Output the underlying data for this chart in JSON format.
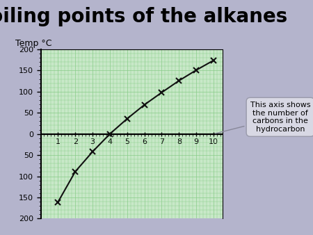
{
  "title": "Boiling points of the alkanes",
  "ylabel": "Temp °C",
  "x_data": [
    1,
    2,
    3,
    4,
    5,
    6,
    7,
    8,
    9,
    10
  ],
  "y_data": [
    -161,
    -89,
    -42,
    0,
    36,
    69,
    98,
    126,
    151,
    174
  ],
  "xlim": [
    0,
    10.5
  ],
  "ylim": [
    -200,
    200
  ],
  "yticks": [
    -200,
    -150,
    -100,
    -50,
    0,
    50,
    100,
    150,
    200
  ],
  "xticks": [
    1,
    2,
    3,
    4,
    5,
    6,
    7,
    8,
    9,
    10
  ],
  "background_color": "#b4b4cc",
  "plot_bg_color": "#c8e8c8",
  "grid_color": "#88cc88",
  "line_color": "#111111",
  "marker": "x",
  "marker_size": 6,
  "marker_lw": 1.5,
  "line_width": 1.5,
  "annotation_text": "This axis shows\nthe number of\ncarbons in the\nhydrocarbon",
  "title_fontsize": 20,
  "ylabel_fontsize": 9,
  "tick_fontsize": 8,
  "annot_fontsize": 8,
  "annot_bg": "#d8d8e4",
  "annot_edge": "#999aaa",
  "arrow_color": "#888899"
}
